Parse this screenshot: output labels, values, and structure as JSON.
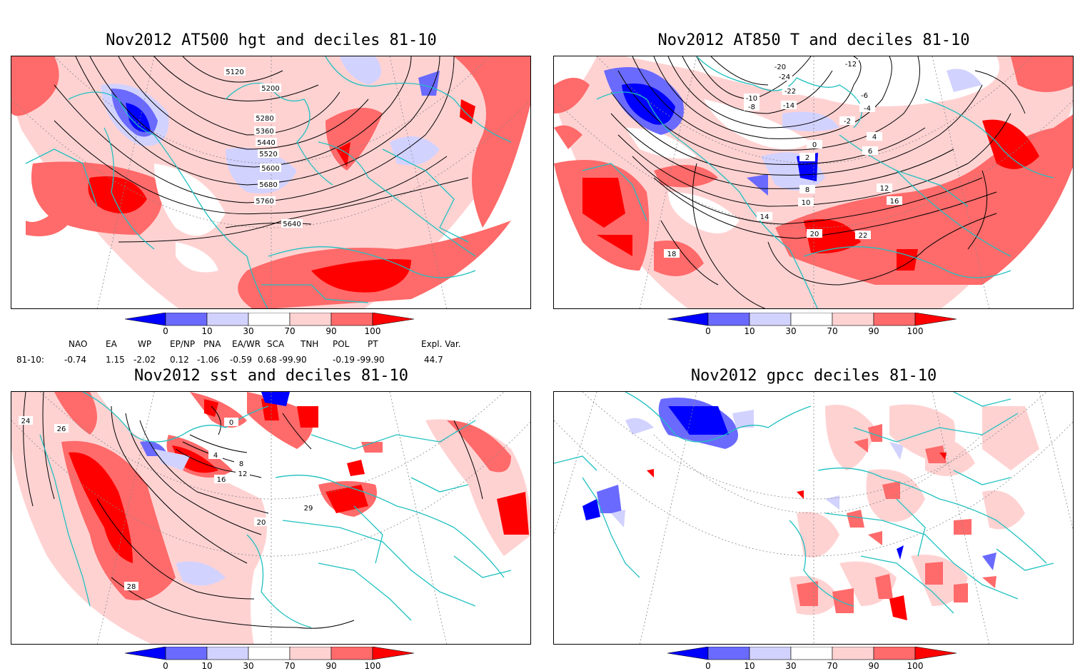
{
  "panels": [
    {
      "title": "Nov2012 AT500 hgt and deciles 81-10",
      "contour_labels": [
        "5120",
        "5200",
        "5280",
        "5360",
        "5440",
        "5520",
        "5600",
        "5680",
        "5760",
        "5640"
      ]
    },
    {
      "title": "Nov2012 AT850 T and deciles 81-10",
      "contour_labels": [
        "-20",
        "-24",
        "-22",
        "-14",
        "-12",
        "-10",
        "-8",
        "-6",
        "-4",
        "-2",
        "0",
        "2",
        "4",
        "6",
        "8",
        "10",
        "12",
        "14",
        "16",
        "18",
        "20",
        "22"
      ]
    },
    {
      "title": "Nov2012 sst and deciles 81-10",
      "contour_labels": [
        "24",
        "26",
        "28",
        "0",
        "4",
        "8",
        "12",
        "16",
        "20",
        "29"
      ]
    },
    {
      "title": "Nov2012 gpcc deciles 81-10",
      "contour_labels": []
    }
  ],
  "colorbar": {
    "ticks": [
      "0",
      "10",
      "30",
      "70",
      "90",
      "100"
    ],
    "colors": {
      "deep_blue": "#0000ff",
      "mid_blue": "#6a6aff",
      "light_blue": "#d2d2ff",
      "white": "#ffffff",
      "light_red": "#ffd2d2",
      "mid_red": "#ff6a6a",
      "deep_red": "#ff0000"
    }
  },
  "teleconnections": {
    "row_label": "81-10:",
    "headers": [
      "NAO",
      "EA",
      "WP",
      "EP/NP",
      "PNA",
      "EA/WR",
      "SCA",
      "TNH",
      "POL",
      "PT",
      "Expl. Var."
    ],
    "values": [
      "-0.74",
      "1.15",
      "-2.02",
      "0.12",
      "-1.06",
      "-0.59",
      "0.68",
      "-99.90",
      "-0.19",
      "-99.90",
      "44.7"
    ]
  },
  "map_colors": {
    "coast": "#20c0c0",
    "contour": "#000000",
    "grid": "#888888"
  }
}
